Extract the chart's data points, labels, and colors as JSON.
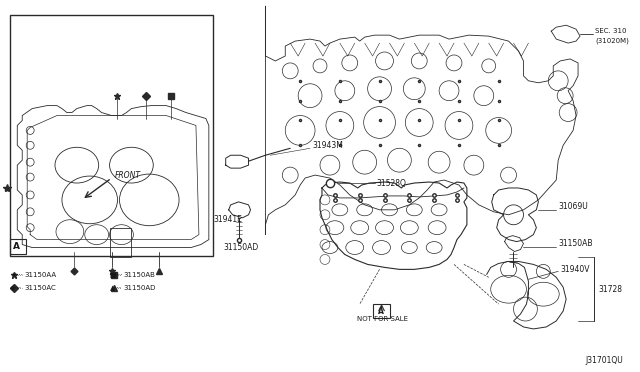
{
  "bg_color": "#f5f5f5",
  "line_color": "#2a2a2a",
  "text_color": "#1a1a1a",
  "fig_width": 6.4,
  "fig_height": 3.72,
  "dpi": 100,
  "labels": {
    "SEC_310_line1": "SEC. 310",
    "SEC_310_line2": "(31020M)",
    "label_31943M": "31943M",
    "label_31941E": "31941E",
    "label_31150AD": "31150AD",
    "label_31528Q": "31528Q",
    "label_31069U": "31069U",
    "label_31150AB": "31150AB",
    "label_31940V": "31940V",
    "label_31728": "31728",
    "not_for_sale": "NOT FOR SALE",
    "diagram_id": "J31701QU",
    "front": "FRONT",
    "box_A": "A",
    "leg_AA": "31150AA",
    "leg_AB": "31150AB",
    "leg_AC": "31150AC",
    "leg_AD": "31150AD"
  }
}
